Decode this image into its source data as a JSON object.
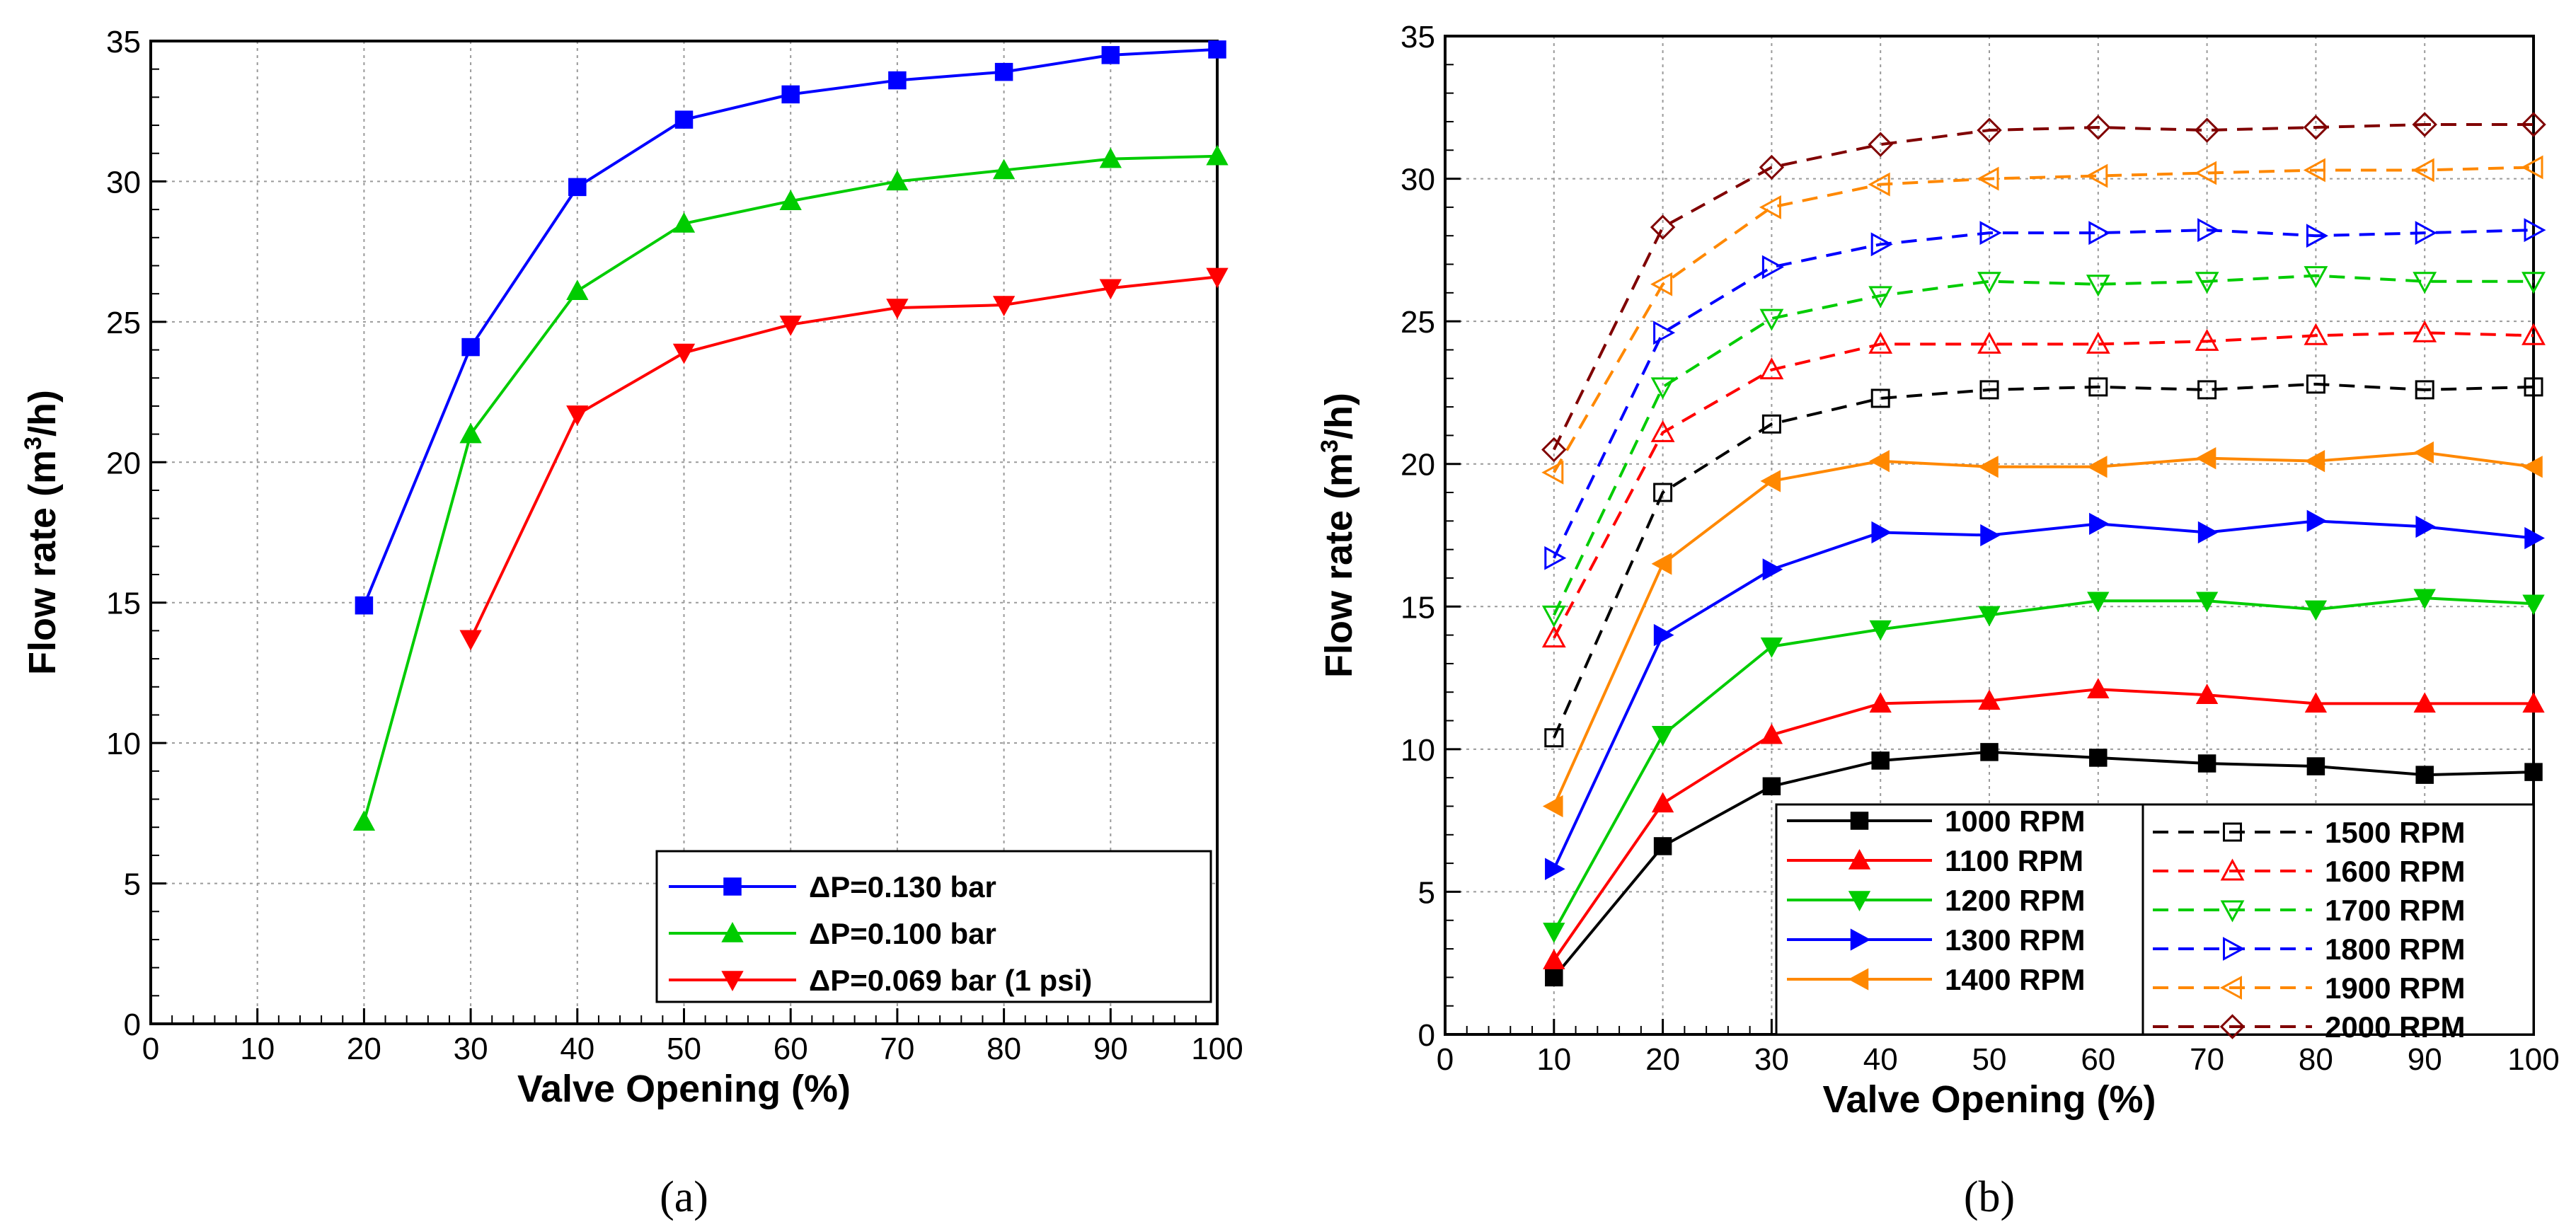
{
  "chart_data": [
    {
      "id": "a",
      "type": "line",
      "caption": "(a)",
      "xlabel": "Valve Opening (%)",
      "ylabel": "Flow rate (m³/h)",
      "ylabel_base": "Flow rate (m",
      "ylabel_sup": "3",
      "ylabel_tail": "/h)",
      "xlim": [
        0,
        100
      ],
      "ylim": [
        0,
        35
      ],
      "xticks": [
        0,
        10,
        20,
        30,
        40,
        50,
        60,
        70,
        80,
        90,
        100
      ],
      "yticks": [
        0,
        5,
        10,
        15,
        20,
        25,
        30,
        35
      ],
      "grid": true,
      "legend_position": "bottom-right",
      "series": [
        {
          "name": "ΔP=0.130 bar",
          "color": "#0000ff",
          "marker": "square-filled",
          "dash": false,
          "x": [
            20,
            30,
            40,
            50,
            60,
            70,
            80,
            90,
            100
          ],
          "y": [
            14.9,
            24.1,
            29.8,
            32.2,
            33.1,
            33.6,
            33.9,
            34.5,
            34.7
          ]
        },
        {
          "name": "ΔP=0.100 bar",
          "color": "#00cc00",
          "marker": "triangle-up-filled",
          "dash": false,
          "x": [
            20,
            30,
            40,
            50,
            60,
            70,
            80,
            90,
            100
          ],
          "y": [
            7.2,
            21.0,
            26.1,
            28.5,
            29.3,
            30.0,
            30.4,
            30.8,
            30.9
          ]
        },
        {
          "name": "ΔP=0.069 bar (1 psi)",
          "color": "#ff0000",
          "marker": "triangle-down-filled",
          "dash": false,
          "x": [
            30,
            40,
            50,
            60,
            70,
            80,
            90,
            100
          ],
          "y": [
            13.7,
            21.7,
            23.9,
            24.9,
            25.5,
            25.6,
            26.2,
            26.6
          ]
        }
      ]
    },
    {
      "id": "b",
      "type": "line",
      "caption": "(b)",
      "xlabel": "Valve Opening (%)",
      "ylabel": "Flow rate (m³/h)",
      "ylabel_base": "Flow rate (m",
      "ylabel_sup": "3",
      "ylabel_tail": "/h)",
      "xlim": [
        0,
        100
      ],
      "ylim": [
        0,
        35
      ],
      "xticks": [
        0,
        10,
        20,
        30,
        40,
        50,
        60,
        70,
        80,
        90,
        100
      ],
      "yticks": [
        0,
        5,
        10,
        15,
        20,
        25,
        30,
        35
      ],
      "grid": true,
      "legend_position": "bottom-right",
      "series": [
        {
          "name": "1000 RPM",
          "color": "#000000",
          "marker": "square-filled",
          "dash": false,
          "x": [
            10,
            20,
            30,
            40,
            50,
            60,
            70,
            80,
            90,
            100
          ],
          "y": [
            2.0,
            6.6,
            8.7,
            9.6,
            9.9,
            9.7,
            9.5,
            9.4,
            9.1,
            9.2
          ]
        },
        {
          "name": "1100 RPM",
          "color": "#ff0000",
          "marker": "triangle-up-filled",
          "dash": false,
          "x": [
            10,
            20,
            30,
            40,
            50,
            60,
            70,
            80,
            90,
            100
          ],
          "y": [
            2.6,
            8.1,
            10.5,
            11.6,
            11.7,
            12.1,
            11.9,
            11.6,
            11.6,
            11.6
          ]
        },
        {
          "name": "1200 RPM",
          "color": "#00cc00",
          "marker": "triangle-down-filled",
          "dash": false,
          "x": [
            10,
            20,
            30,
            40,
            50,
            60,
            70,
            80,
            90,
            100
          ],
          "y": [
            3.6,
            10.5,
            13.6,
            14.2,
            14.7,
            15.2,
            15.2,
            14.9,
            15.3,
            15.1
          ]
        },
        {
          "name": "1300 RPM",
          "color": "#0000ff",
          "marker": "triangle-right-filled",
          "dash": false,
          "x": [
            10,
            20,
            30,
            40,
            50,
            60,
            70,
            80,
            90,
            100
          ],
          "y": [
            5.8,
            14.0,
            16.3,
            17.6,
            17.5,
            17.9,
            17.6,
            18.0,
            17.8,
            17.4
          ]
        },
        {
          "name": "1400 RPM",
          "color": "#ff8800",
          "marker": "triangle-left-filled",
          "dash": false,
          "x": [
            10,
            20,
            30,
            40,
            50,
            60,
            70,
            80,
            90,
            100
          ],
          "y": [
            8.0,
            16.5,
            19.4,
            20.1,
            19.9,
            19.9,
            20.2,
            20.1,
            20.4,
            19.9
          ]
        },
        {
          "name": "1500 RPM",
          "color": "#000000",
          "marker": "square-open",
          "dash": true,
          "x": [
            10,
            20,
            30,
            40,
            50,
            60,
            70,
            80,
            90,
            100
          ],
          "y": [
            10.4,
            19.0,
            21.4,
            22.3,
            22.6,
            22.7,
            22.6,
            22.8,
            22.6,
            22.7
          ]
        },
        {
          "name": "1600 RPM",
          "color": "#ff0000",
          "marker": "triangle-up-open",
          "dash": true,
          "x": [
            10,
            20,
            30,
            40,
            50,
            60,
            70,
            80,
            90,
            100
          ],
          "y": [
            13.9,
            21.1,
            23.3,
            24.2,
            24.2,
            24.2,
            24.3,
            24.5,
            24.6,
            24.5
          ]
        },
        {
          "name": "1700 RPM",
          "color": "#00cc00",
          "marker": "triangle-down-open",
          "dash": true,
          "x": [
            10,
            20,
            30,
            40,
            50,
            60,
            70,
            80,
            90,
            100
          ],
          "y": [
            14.7,
            22.7,
            25.1,
            25.9,
            26.4,
            26.3,
            26.4,
            26.6,
            26.4,
            26.4
          ]
        },
        {
          "name": "1800 RPM",
          "color": "#0000ff",
          "marker": "triangle-right-open",
          "dash": true,
          "x": [
            10,
            20,
            30,
            40,
            50,
            60,
            70,
            80,
            90,
            100
          ],
          "y": [
            16.7,
            24.6,
            26.9,
            27.7,
            28.1,
            28.1,
            28.2,
            28.0,
            28.1,
            28.2
          ]
        },
        {
          "name": "1900 RPM",
          "color": "#ff8800",
          "marker": "triangle-left-open",
          "dash": true,
          "x": [
            10,
            20,
            30,
            40,
            50,
            60,
            70,
            80,
            90,
            100
          ],
          "y": [
            19.7,
            26.3,
            29.0,
            29.8,
            30.0,
            30.1,
            30.2,
            30.3,
            30.3,
            30.4
          ]
        },
        {
          "name": "2000 RPM",
          "color": "#800000",
          "marker": "diamond-open",
          "dash": true,
          "x": [
            10,
            20,
            30,
            40,
            50,
            60,
            70,
            80,
            90,
            100
          ],
          "y": [
            20.5,
            28.3,
            30.4,
            31.2,
            31.7,
            31.8,
            31.7,
            31.8,
            31.9,
            31.9
          ]
        }
      ]
    }
  ]
}
